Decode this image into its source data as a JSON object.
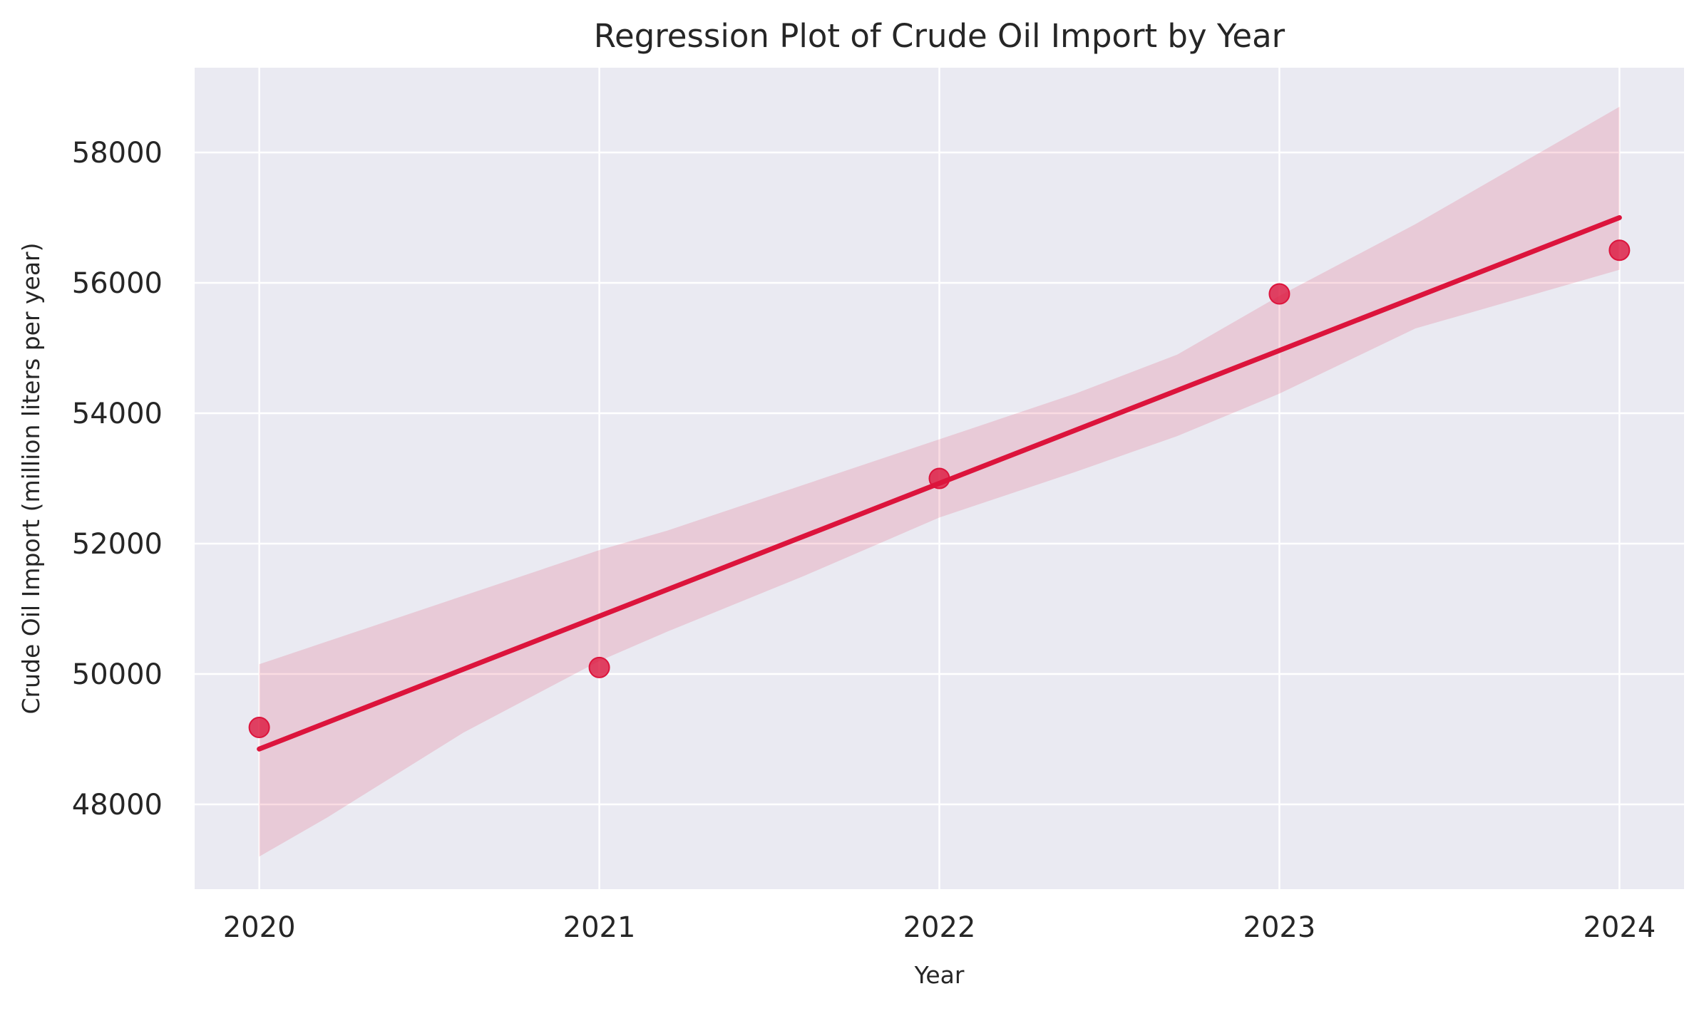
{
  "chart_data": {
    "type": "scatter",
    "title": "Regression Plot of Crude Oil Import by Year",
    "xlabel": "Year",
    "ylabel": "Crude Oil Import (million liters per year)",
    "x": [
      2020,
      2021,
      2022,
      2023,
      2024
    ],
    "y": [
      49180,
      50100,
      53000,
      55830,
      56500
    ],
    "xlim": [
      2019.81,
      2024.19
    ],
    "ylim": [
      46700,
      59300
    ],
    "xticks": [
      "2020",
      "2021",
      "2022",
      "2023",
      "2024"
    ],
    "yticks": [
      "48000",
      "50000",
      "52000",
      "54000",
      "56000",
      "58000"
    ],
    "regression_line": {
      "x": [
        2020,
        2024
      ],
      "y": [
        48850,
        57000
      ]
    },
    "confidence_band": {
      "x": [
        2020,
        2020.2,
        2020.6,
        2021,
        2021.2,
        2021.6,
        2022,
        2022.4,
        2022.7,
        2023,
        2023.4,
        2024
      ],
      "upper": [
        50150,
        50500,
        51200,
        51900,
        52200,
        52900,
        53600,
        54300,
        54900,
        55800,
        56900,
        58700
      ],
      "lower": [
        47200,
        47800,
        49100,
        50200,
        50650,
        51500,
        52400,
        53100,
        53650,
        54300,
        55300,
        56200
      ]
    },
    "grid": true,
    "colors": {
      "axes_background": "#eaeaf2",
      "grid": "#ffffff",
      "line": "#dc143c",
      "points": "#dc143c",
      "band": "#dc143c"
    }
  }
}
